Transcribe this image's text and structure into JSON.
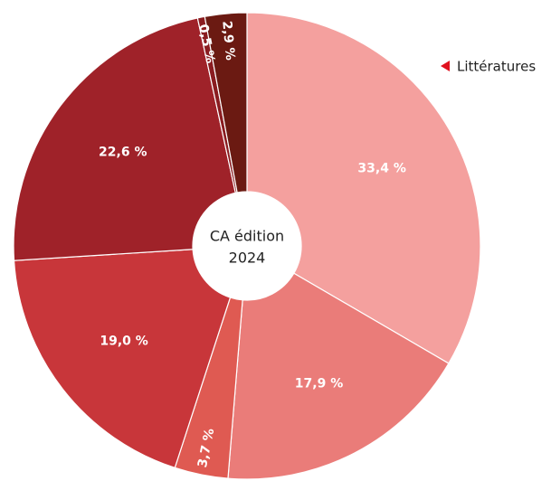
{
  "chart_data": {
    "type": "donut",
    "center_label": [
      "CA édition",
      "2024"
    ],
    "categories": [
      "Littératures",
      null,
      null,
      null,
      null,
      null,
      null
    ],
    "values": [
      33.4,
      17.9,
      3.7,
      19.0,
      22.6,
      0.5,
      2.9
    ],
    "value_labels": [
      "33,4 %",
      "17,9 %",
      "3,7 %",
      "19,0 %",
      "22,6 %",
      "0,5 %",
      "2,9 %"
    ],
    "colors": [
      "#f4a09e",
      "#ea7c79",
      "#df5a52",
      "#c8363a",
      "#9f2229",
      "#8a1c20",
      "#6b1a12"
    ],
    "legend": "top-right"
  }
}
